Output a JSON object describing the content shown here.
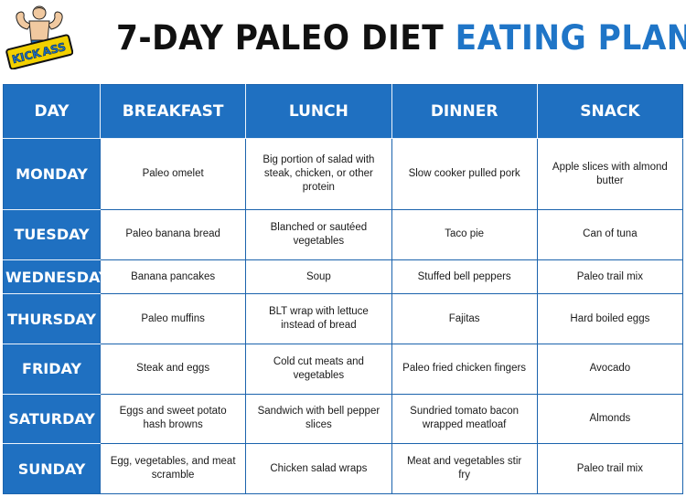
{
  "header": {
    "logo_text_top": "KICK",
    "logo_text_main": "ASS",
    "title_dark": "7-DAY PALEO DIET",
    "title_blue": "EATING PLAN"
  },
  "colors": {
    "header_blue": "#1f70c1",
    "title_blue": "#1f75c7"
  },
  "table": {
    "columns": [
      "DAY",
      "BREAKFAST",
      "LUNCH",
      "DINNER",
      "SNACK"
    ],
    "rows": [
      {
        "day": "MONDAY",
        "breakfast": "Paleo omelet",
        "lunch": "Big portion of salad with steak, chicken, or other protein",
        "dinner": "Slow cooker pulled pork",
        "snack": "Apple slices with almond butter"
      },
      {
        "day": "TUESDAY",
        "breakfast": "Paleo banana bread",
        "lunch": "Blanched or sautéed vegetables",
        "dinner": "Taco pie",
        "snack": "Can of tuna"
      },
      {
        "day": "WEDNESDAY",
        "breakfast": "Banana pancakes",
        "lunch": "Soup",
        "dinner": "Stuffed bell peppers",
        "snack": "Paleo trail mix"
      },
      {
        "day": "THURSDAY",
        "breakfast": "Paleo muffins",
        "lunch": "BLT wrap with lettuce instead of bread",
        "dinner": "Fajitas",
        "snack": "Hard boiled eggs"
      },
      {
        "day": "FRIDAY",
        "breakfast": "Steak and eggs",
        "lunch": "Cold cut meats and vegetables",
        "dinner": "Paleo fried chicken fingers",
        "snack": "Avocado"
      },
      {
        "day": "SATURDAY",
        "breakfast": "Eggs and sweet potato hash browns",
        "lunch": "Sandwich with bell pepper slices",
        "dinner": "Sundried tomato bacon wrapped meatloaf",
        "snack": "Almonds"
      },
      {
        "day": "SUNDAY",
        "breakfast": "Egg, vegetables, and meat scramble",
        "lunch": "Chicken salad wraps",
        "dinner": "Meat and vegetables stir fry",
        "snack": "Paleo trail mix"
      }
    ]
  }
}
